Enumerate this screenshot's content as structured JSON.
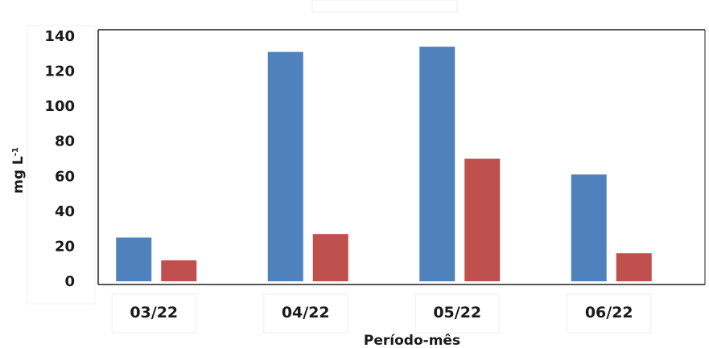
{
  "chart_data": {
    "type": "bar",
    "categories": [
      "03/22",
      "04/22",
      "05/22",
      "06/22"
    ],
    "series": [
      {
        "color": "#4f81bd",
        "values": [
          25,
          131,
          134,
          61
        ]
      },
      {
        "color": "#c0504d",
        "values": [
          12,
          27,
          70,
          16
        ]
      }
    ],
    "xlabel": "Período-mês",
    "ylabel": "mg L",
    "ylabel_superscript": "-1",
    "ylim": [
      0,
      140
    ],
    "yticks": [
      "0",
      "20",
      "40",
      "60",
      "80",
      "100",
      "120",
      "140"
    ],
    "grid": false,
    "legend": "none"
  }
}
